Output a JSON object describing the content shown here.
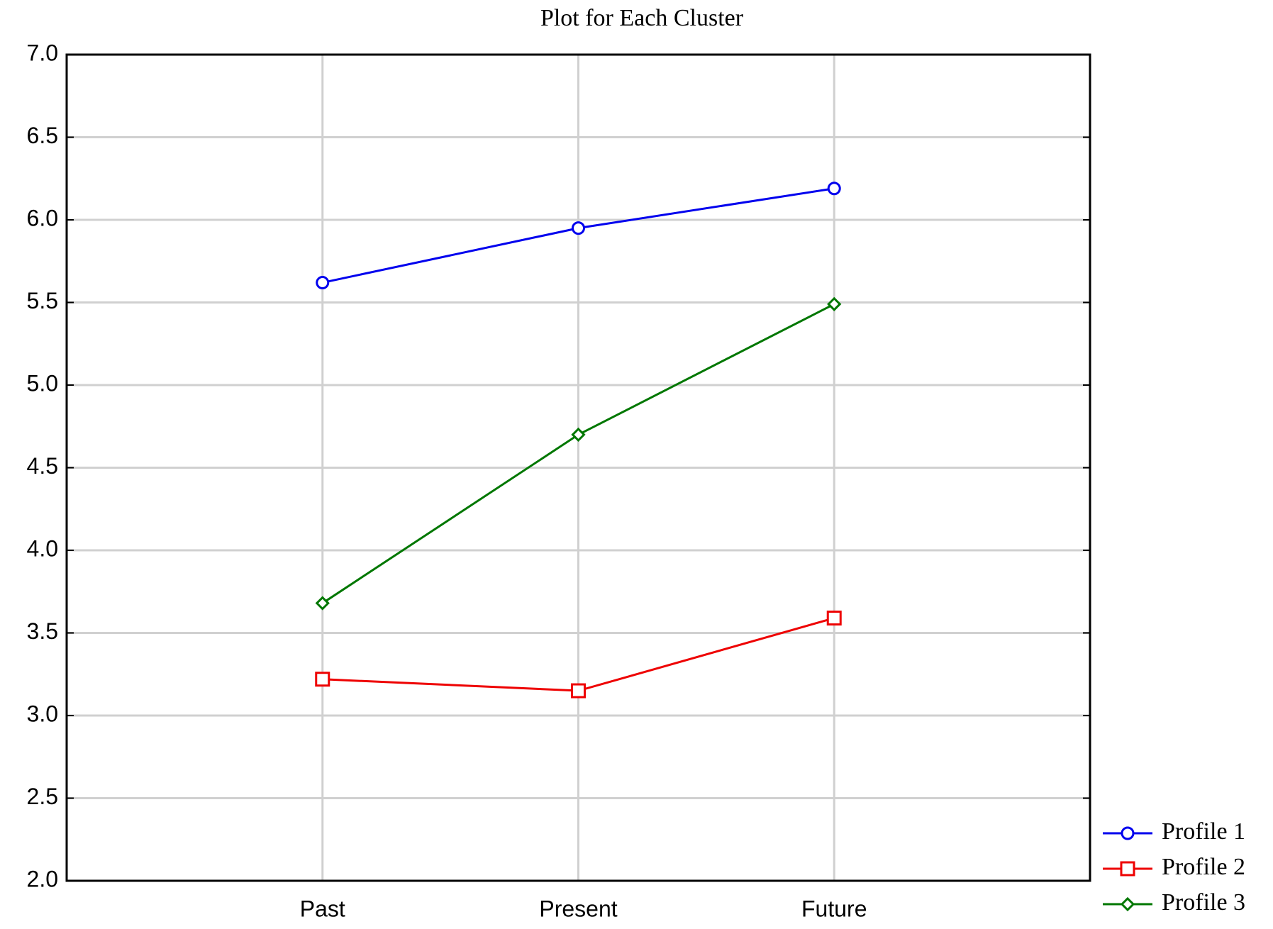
{
  "chart_data": {
    "type": "line",
    "title": "Plot for Each Cluster",
    "categories": [
      "Past",
      "Present",
      "Future"
    ],
    "series": [
      {
        "name": "Profile 1",
        "color": "#0000ee",
        "marker": "circle",
        "values": [
          5.62,
          5.95,
          6.19
        ]
      },
      {
        "name": "Profile 2",
        "color": "#ee0000",
        "marker": "square",
        "values": [
          3.22,
          3.15,
          3.59
        ]
      },
      {
        "name": "Profile 3",
        "color": "#007700",
        "marker": "diamond",
        "values": [
          3.68,
          4.7,
          5.49
        ]
      }
    ],
    "ylim": [
      2,
      7
    ],
    "yticks": [
      {
        "value": 2,
        "label": "2.0"
      },
      2.5,
      {
        "value": 3,
        "label": "3.0"
      },
      3.5,
      {
        "value": 4,
        "label": "4.0"
      },
      4.5,
      {
        "value": 5,
        "label": "5.0"
      },
      5.5,
      {
        "value": 6,
        "label": "6.0"
      },
      6.5,
      {
        "value": 7,
        "label": "7.0"
      }
    ],
    "grid": true,
    "legend": "bottom-right-outside"
  }
}
